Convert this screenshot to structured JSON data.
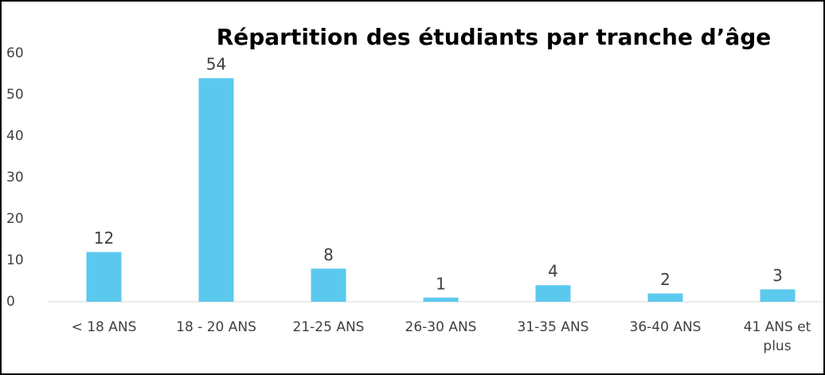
{
  "chart_data": {
    "type": "bar",
    "title": "Répartition des étudiants par tranche d’âge",
    "categories": [
      "< 18 ANS",
      "18 - 20 ANS",
      "21-25 ANS",
      "26-30 ANS",
      "31-35 ANS",
      "36-40 ANS",
      "41 ANS et plus"
    ],
    "values": [
      12,
      54,
      8,
      1,
      4,
      2,
      3
    ],
    "color": "#5bc9ee",
    "ylim": [
      0,
      60
    ],
    "yticks": [
      0,
      10,
      20,
      30,
      40,
      50,
      60
    ],
    "grid": false,
    "data_labels": true
  }
}
